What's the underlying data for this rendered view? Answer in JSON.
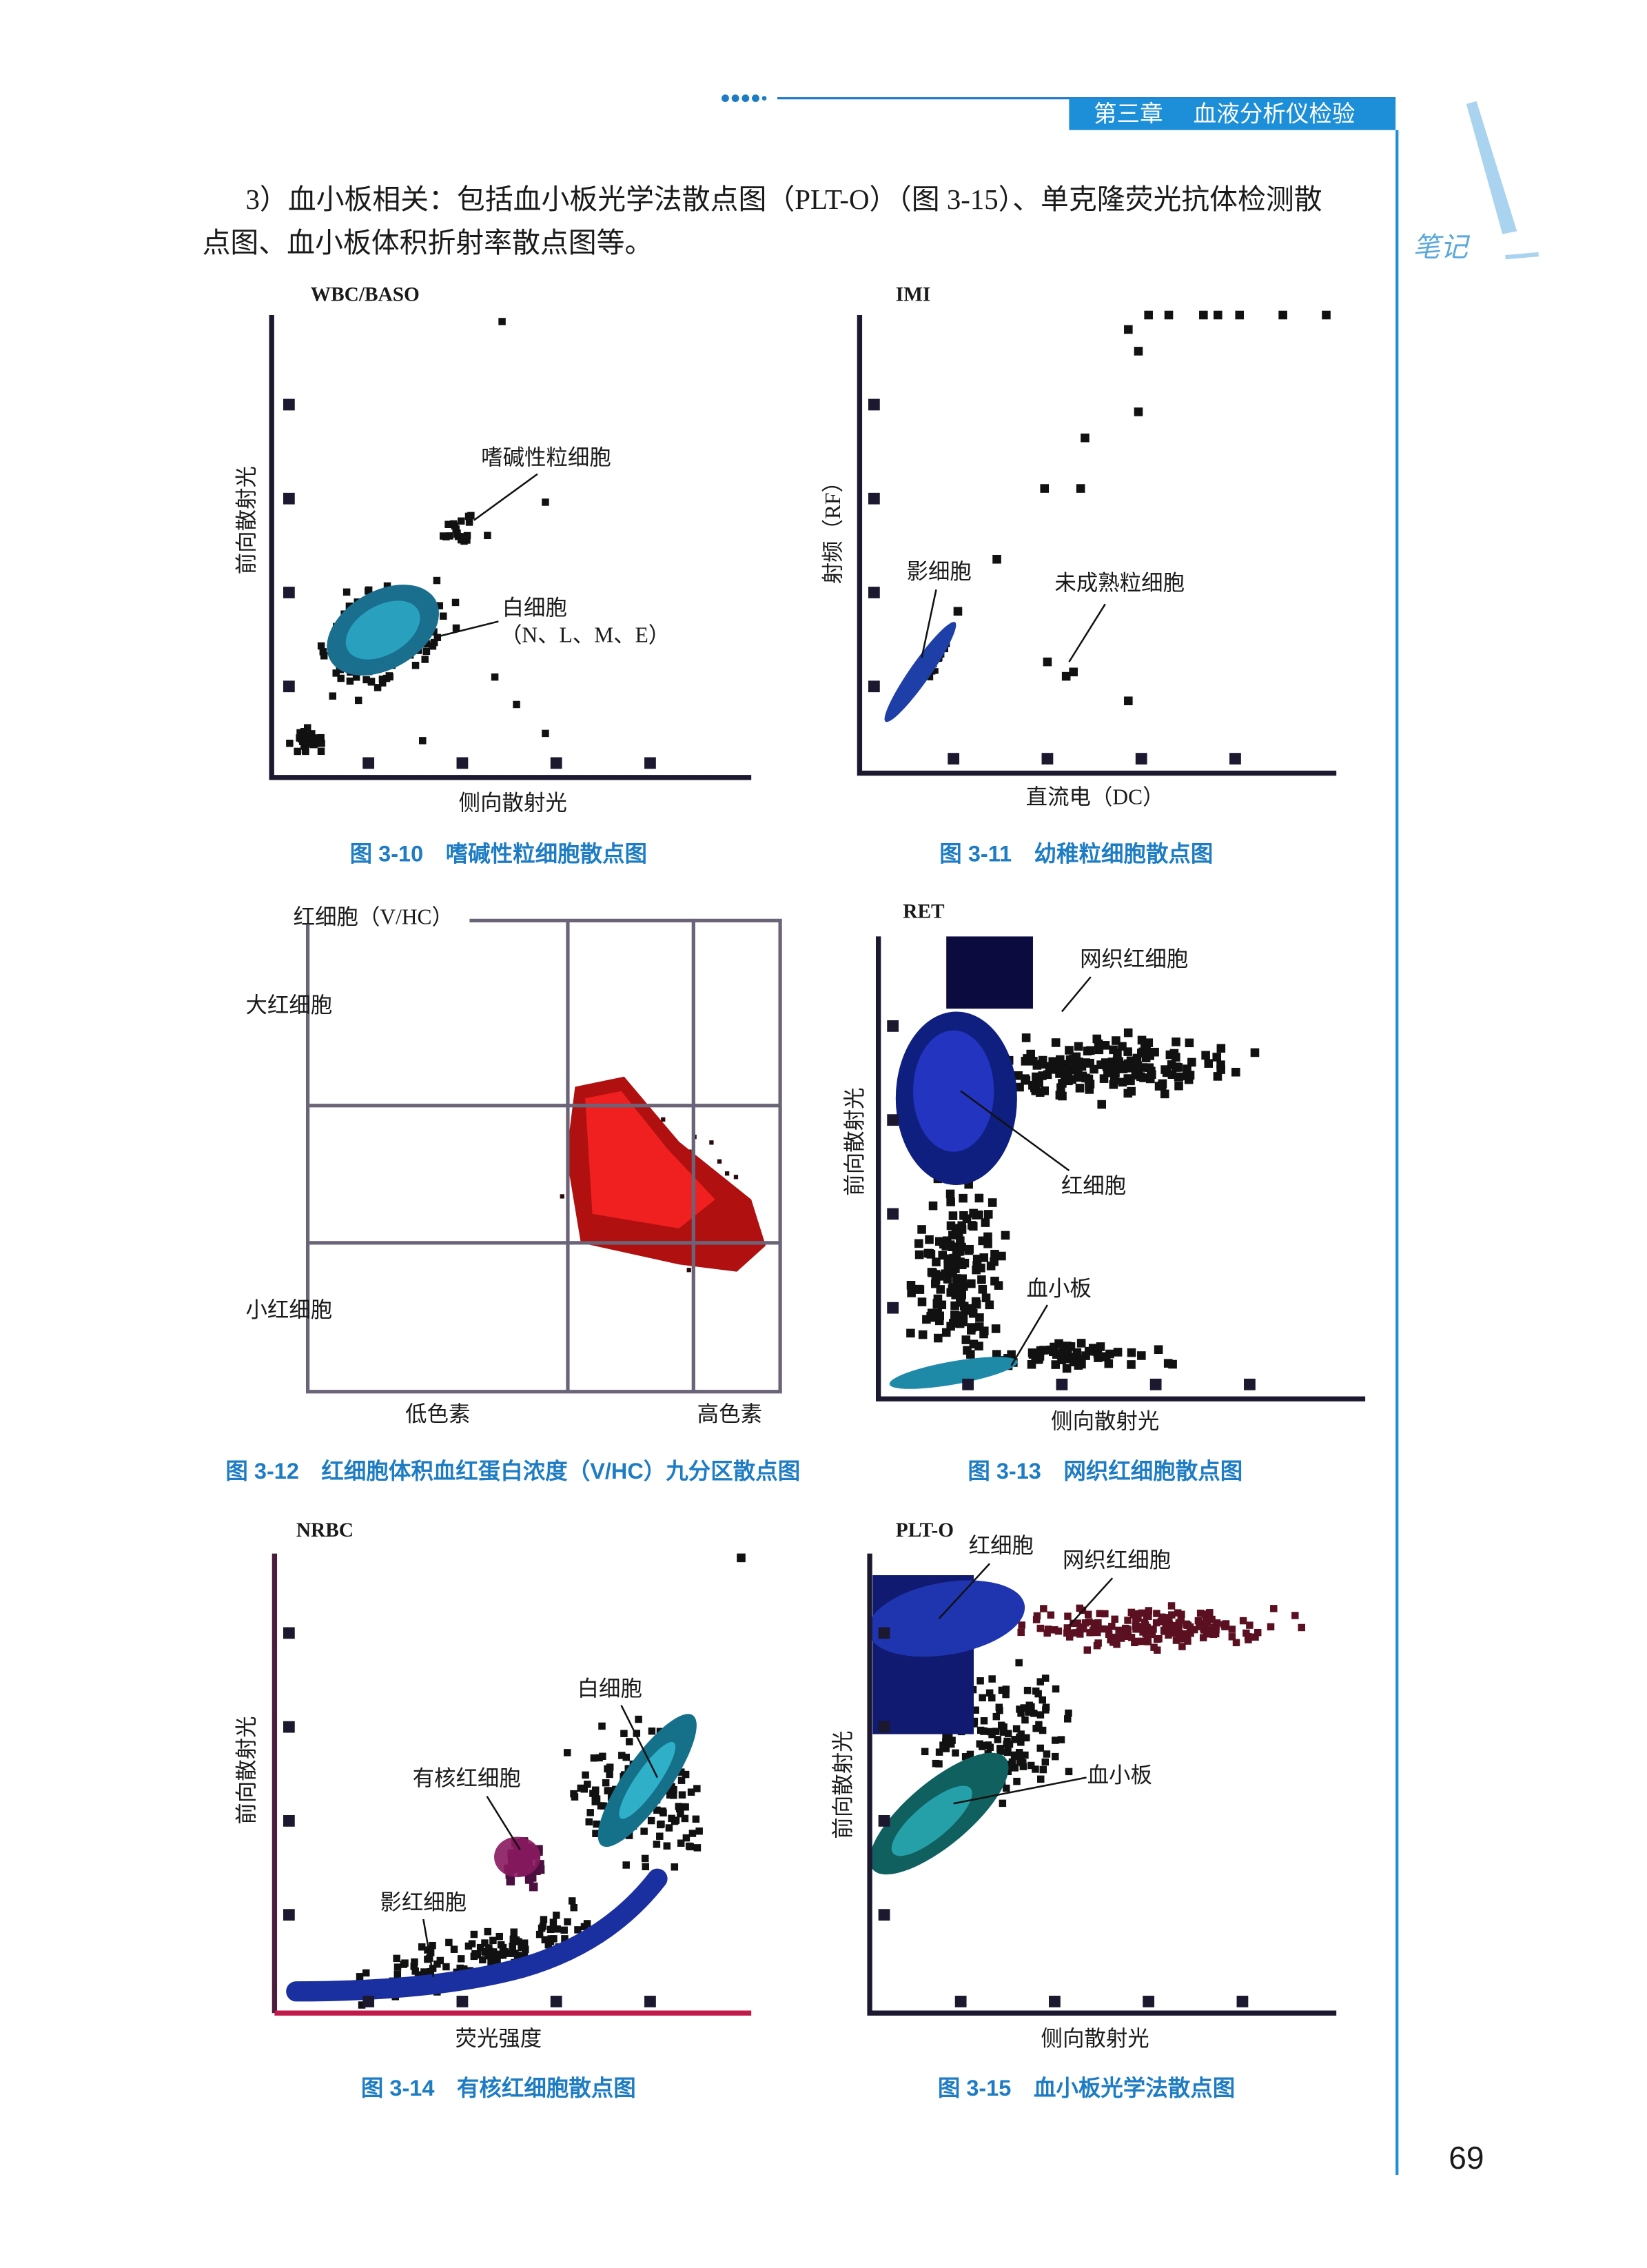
{
  "header": {
    "chapter": "第三章",
    "title": "血液分析仪检验"
  },
  "sidebar": "笔记",
  "paragraph": [
    "3）血小板相关：包括血小板光学法散点图（PLT-O）（图 3-15）、单克隆荧光抗体检测散",
    "点图、血小板体积折射率散点图等。"
  ],
  "figures": [
    {
      "plot_title": "WBC/BASO",
      "y_label": "前向散射光",
      "x_label": "侧向散射光",
      "labels": [
        "嗜碱性粒细胞",
        "白细胞",
        "（N、L、M、E）"
      ],
      "caption": "图 3-10　嗜碱性粒细胞散点图"
    },
    {
      "plot_title": "IMI",
      "y_label": "射频（RF）",
      "x_label": "直流电（DC）",
      "labels": [
        "影细胞",
        "未成熟粒细胞"
      ],
      "caption": "图 3-11　幼稚粒细胞散点图"
    },
    {
      "plot_title": "红细胞（V/HC）",
      "labels": [
        "大红细胞",
        "小红细胞",
        "低色素",
        "高色素"
      ],
      "caption": "图 3-12　红细胞体积血红蛋白浓度（V/HC）九分区散点图"
    },
    {
      "plot_title": "RET",
      "y_label": "前向散射光",
      "x_label": "侧向散射光",
      "labels": [
        "网织红细胞",
        "红细胞",
        "血小板"
      ],
      "caption": "图 3-13　网织红细胞散点图"
    },
    {
      "plot_title": "NRBC",
      "y_label": "前向散射光",
      "x_label": "荧光强度",
      "labels": [
        "白细胞",
        "有核红细胞",
        "影红细胞"
      ],
      "caption": "图 3-14　有核红细胞散点图"
    },
    {
      "plot_title": "PLT-O",
      "y_label": "前向散射光",
      "x_label": "侧向散射光",
      "labels": [
        "红细胞",
        "网织红细胞",
        "血小板"
      ],
      "caption": "图 3-15　血小板光学法散点图"
    }
  ],
  "page_number": "69"
}
